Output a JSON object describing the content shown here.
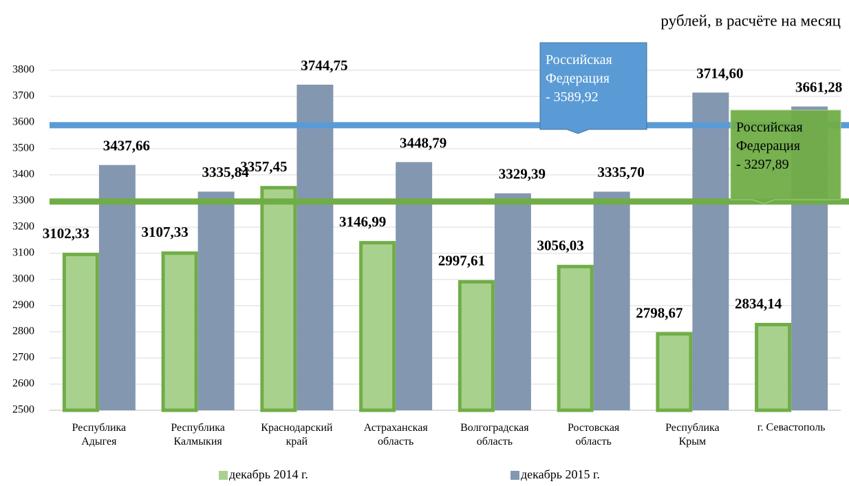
{
  "chart_data": {
    "type": "bar",
    "subtitle": "рублей, в расчёте на месяц",
    "categories": [
      "Республика\nАдыгея",
      "Республика\nКалмыкия",
      "Краснодарский\nкрай",
      "Астраханская\nобласть",
      "Волгоградская\nобласть",
      "Ростовская\nобласть",
      "Республика\nКрым",
      "г. Севастополь"
    ],
    "series": [
      {
        "name": "декабрь 2014 г.",
        "color": "#a9d18e",
        "edge": "#70ad47",
        "values": [
          3102.33,
          3107.33,
          3357.45,
          3146.99,
          2997.61,
          3056.03,
          2798.67,
          2834.14
        ],
        "value_labels": [
          "3102,33",
          "3107,33",
          "3357,45",
          "3146,99",
          "2997,61",
          "3056,03",
          "2798,67",
          "2834,14"
        ]
      },
      {
        "name": "декабрь 2015 г.",
        "color": "#8497b0",
        "values": [
          3437.66,
          3335.84,
          3744.75,
          3448.79,
          3329.39,
          3335.7,
          3714.6,
          3661.28
        ],
        "value_labels": [
          "3437,66",
          "3335,84",
          "3744,75",
          "3448,79",
          "3329,39",
          "3335,70",
          "3714,60",
          "3661,28"
        ]
      }
    ],
    "annotations": [
      {
        "text": "Российская\nФедерация\n- 3589,92",
        "value": 3589.92,
        "color": "#5b9bd5"
      },
      {
        "text": "Российская\nФедерация\n- 3297,89",
        "value": 3297.89,
        "color": "#70ad47"
      }
    ],
    "ylim": [
      2500,
      3800
    ],
    "yticks": [
      2500,
      2600,
      2700,
      2800,
      2900,
      3000,
      3100,
      3200,
      3300,
      3400,
      3500,
      3600,
      3700,
      3800
    ],
    "grid": true,
    "legend": "bottom"
  }
}
